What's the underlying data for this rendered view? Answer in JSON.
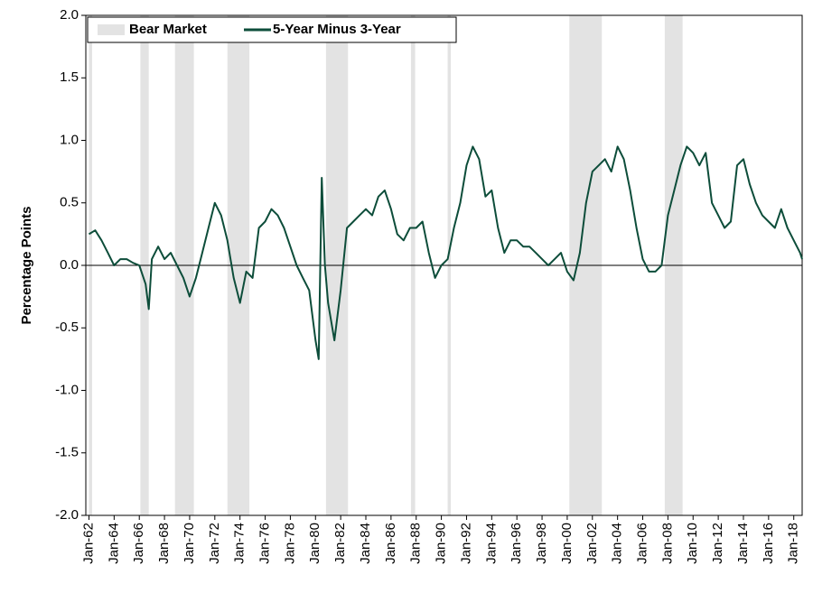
{
  "chart_data": {
    "type": "line",
    "ylabel": "Percentage Points",
    "ylim": [
      -2,
      2
    ],
    "yticks": [
      {
        "value": 2,
        "label": "2.0"
      },
      {
        "value": 1.5,
        "label": "1.5"
      },
      {
        "value": 1,
        "label": "1.0"
      },
      {
        "value": 0.5,
        "label": "0.5"
      },
      {
        "value": 0,
        "label": "0.0"
      },
      {
        "value": -0.5,
        "label": "-0.5"
      },
      {
        "value": -1,
        "label": "-1.0"
      },
      {
        "value": -1.5,
        "label": "-1.5"
      },
      {
        "value": -2,
        "label": "-2.0"
      }
    ],
    "xlim": [
      "Oct-61",
      "Sep-18"
    ],
    "xticks": [
      "Jan-62",
      "Jan-64",
      "Jan-66",
      "Jan-68",
      "Jan-70",
      "Jan-72",
      "Jan-74",
      "Jan-76",
      "Jan-78",
      "Jan-80",
      "Jan-82",
      "Jan-84",
      "Jan-86",
      "Jan-88",
      "Jan-90",
      "Jan-92",
      "Jan-94",
      "Jan-96",
      "Jan-98",
      "Jan-00",
      "Jan-02",
      "Jan-04",
      "Jan-06",
      "Jan-08",
      "Jan-10",
      "Jan-12",
      "Jan-14",
      "Jan-16",
      "Jan-18"
    ],
    "bear_markets": {
      "name": "Bear Market",
      "color": "#e3e3e3",
      "periods": [
        [
          "Jan-62",
          "Apr-62"
        ],
        [
          "Feb-66",
          "Oct-66"
        ],
        [
          "Nov-68",
          "May-70"
        ],
        [
          "Jan-73",
          "Oct-74"
        ],
        [
          "Nov-80",
          "Aug-82"
        ],
        [
          "Aug-87",
          "Dec-87"
        ],
        [
          "Jul-90",
          "Oct-90"
        ],
        [
          "Mar-00",
          "Oct-02"
        ],
        [
          "Oct-07",
          "Mar-09"
        ]
      ]
    },
    "x": [
      "Jan-62",
      "Jul-62",
      "Jan-63",
      "Jul-63",
      "Jan-64",
      "Jul-64",
      "Jan-65",
      "Jul-65",
      "Jan-66",
      "Jul-66",
      "Oct-66",
      "Jan-67",
      "Jul-67",
      "Jan-68",
      "Jul-68",
      "Jan-69",
      "Jul-69",
      "Jan-70",
      "Jul-70",
      "Jan-71",
      "Jul-71",
      "Jan-72",
      "Jul-72",
      "Jan-73",
      "Jul-73",
      "Jan-74",
      "Jul-74",
      "Jan-75",
      "Jul-75",
      "Jan-76",
      "Jul-76",
      "Jan-77",
      "Jul-77",
      "Jan-78",
      "Jul-78",
      "Jan-79",
      "Jul-79",
      "Jan-80",
      "Apr-80",
      "Jul-80",
      "Oct-80",
      "Jan-81",
      "Jul-81",
      "Jan-82",
      "Jul-82",
      "Jan-83",
      "Jul-83",
      "Jan-84",
      "Jul-84",
      "Jan-85",
      "Jul-85",
      "Jan-86",
      "Jul-86",
      "Jan-87",
      "Jul-87",
      "Jan-88",
      "Jul-88",
      "Jan-89",
      "Jul-89",
      "Jan-90",
      "Jul-90",
      "Jan-91",
      "Jul-91",
      "Jan-92",
      "Jul-92",
      "Jan-93",
      "Jul-93",
      "Jan-94",
      "Jul-94",
      "Jan-95",
      "Jul-95",
      "Jan-96",
      "Jul-96",
      "Jan-97",
      "Jul-97",
      "Jan-98",
      "Jul-98",
      "Jan-99",
      "Jul-99",
      "Jan-00",
      "Jul-00",
      "Jan-01",
      "Jul-01",
      "Jan-02",
      "Jul-02",
      "Jan-03",
      "Jul-03",
      "Jan-04",
      "Jul-04",
      "Jan-05",
      "Jul-05",
      "Jan-06",
      "Jul-06",
      "Jan-07",
      "Jul-07",
      "Jan-08",
      "Jul-08",
      "Jan-09",
      "Jul-09",
      "Jan-10",
      "Jul-10",
      "Jan-11",
      "Jul-11",
      "Jan-12",
      "Jul-12",
      "Jan-13",
      "Jul-13",
      "Jan-14",
      "Jul-14",
      "Jan-15",
      "Jul-15",
      "Jan-16",
      "Jul-16",
      "Jan-17",
      "Jul-17",
      "Jan-18",
      "Jul-18",
      "Sep-18"
    ],
    "series": [
      {
        "name": "5-Year Minus 3-Year",
        "color": "#0d4d3a",
        "values": [
          0.25,
          0.28,
          0.2,
          0.1,
          0.0,
          0.05,
          0.05,
          0.02,
          0.0,
          -0.15,
          -0.35,
          0.05,
          0.15,
          0.05,
          0.1,
          0.0,
          -0.1,
          -0.25,
          -0.1,
          0.1,
          0.3,
          0.5,
          0.4,
          0.2,
          -0.1,
          -0.3,
          -0.05,
          -0.1,
          0.3,
          0.35,
          0.45,
          0.4,
          0.3,
          0.15,
          0.0,
          -0.1,
          -0.2,
          -0.6,
          -0.75,
          0.7,
          0.0,
          -0.3,
          -0.6,
          -0.2,
          0.3,
          0.35,
          0.4,
          0.45,
          0.4,
          0.55,
          0.6,
          0.45,
          0.25,
          0.2,
          0.3,
          0.3,
          0.35,
          0.1,
          -0.1,
          0.0,
          0.05,
          0.3,
          0.5,
          0.8,
          0.95,
          0.85,
          0.55,
          0.6,
          0.3,
          0.1,
          0.2,
          0.2,
          0.15,
          0.15,
          0.1,
          0.05,
          0.0,
          0.05,
          0.1,
          -0.05,
          -0.12,
          0.1,
          0.5,
          0.75,
          0.8,
          0.85,
          0.75,
          0.95,
          0.85,
          0.6,
          0.3,
          0.05,
          -0.05,
          -0.05,
          0.0,
          0.4,
          0.6,
          0.8,
          0.95,
          0.9,
          0.8,
          0.9,
          0.5,
          0.4,
          0.3,
          0.35,
          0.8,
          0.85,
          0.65,
          0.5,
          0.4,
          0.35,
          0.3,
          0.45,
          0.3,
          0.2,
          0.1,
          0.05
        ]
      }
    ]
  }
}
